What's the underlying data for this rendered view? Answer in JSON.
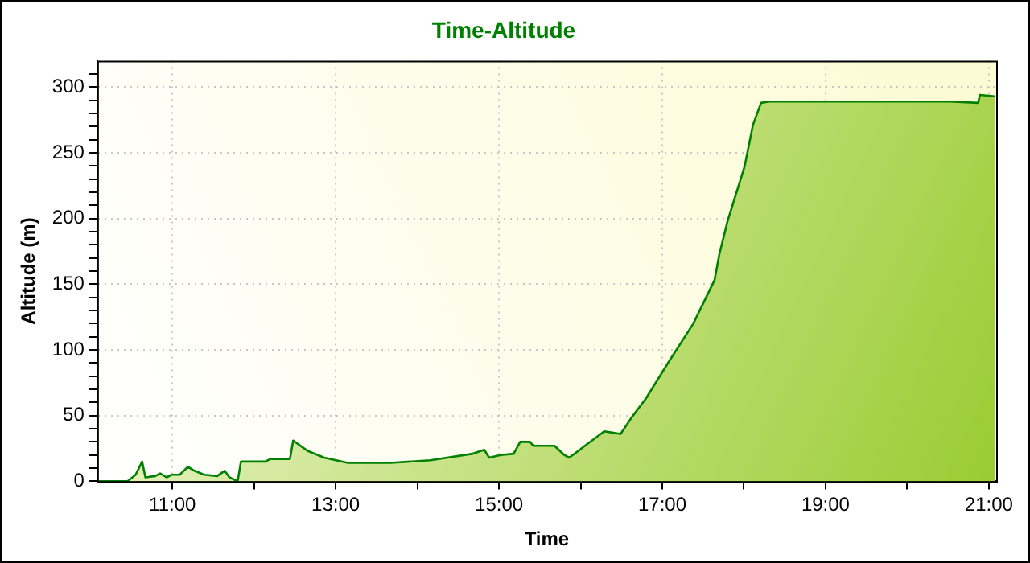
{
  "chart_data": {
    "type": "area",
    "title": "Time-Altitude",
    "xlabel": "Time",
    "ylabel": "Altitude (m)",
    "xlim": [
      10.08,
      21.09
    ],
    "xticks": [
      {
        "value": 11,
        "label": "11:00"
      },
      {
        "value": 12,
        "label": null
      },
      {
        "value": 13,
        "label": "13:00"
      },
      {
        "value": 14,
        "label": null
      },
      {
        "value": 15,
        "label": "15:00"
      },
      {
        "value": 16,
        "label": null
      },
      {
        "value": 17,
        "label": "17:00"
      },
      {
        "value": 18,
        "label": null
      },
      {
        "value": 19,
        "label": "19:00"
      },
      {
        "value": 20,
        "label": null
      },
      {
        "value": 21,
        "label": "21:00"
      }
    ],
    "ylim": [
      0,
      320
    ],
    "yticks": [
      0,
      {
        "value": 10,
        "label": null
      },
      {
        "value": 20,
        "label": null
      },
      {
        "value": 30,
        "label": null
      },
      {
        "value": 40,
        "label": null
      },
      50,
      {
        "value": 60,
        "label": null
      },
      {
        "value": 70,
        "label": null
      },
      {
        "value": 80,
        "label": null
      },
      {
        "value": 90,
        "label": null
      },
      100,
      {
        "value": 110,
        "label": null
      },
      {
        "value": 120,
        "label": null
      },
      {
        "value": 130,
        "label": null
      },
      {
        "value": 140,
        "label": null
      },
      150,
      {
        "value": 160,
        "label": null
      },
      {
        "value": 170,
        "label": null
      },
      {
        "value": 180,
        "label": null
      },
      {
        "value": 190,
        "label": null
      },
      200,
      {
        "value": 210,
        "label": null
      },
      {
        "value": 220,
        "label": null
      },
      {
        "value": 230,
        "label": null
      },
      {
        "value": 240,
        "label": null
      },
      250,
      {
        "value": 260,
        "label": null
      },
      {
        "value": 270,
        "label": null
      },
      {
        "value": 280,
        "label": null
      },
      {
        "value": 290,
        "label": null
      },
      300,
      {
        "value": 310,
        "label": null
      }
    ],
    "grid": true,
    "series": [
      {
        "color": "#008000",
        "x": [
          10.08,
          10.45,
          10.55,
          10.63,
          10.67,
          10.79,
          10.85,
          10.93,
          10.99,
          11.09,
          11.19,
          11.27,
          11.39,
          11.55,
          11.64,
          11.7,
          11.8,
          11.84,
          12.14,
          12.2,
          12.44,
          12.48,
          12.66,
          12.86,
          13.15,
          13.67,
          14.16,
          14.68,
          14.82,
          14.88,
          15.02,
          15.18,
          15.26,
          15.38,
          15.42,
          15.68,
          15.8,
          15.86,
          15.99,
          16.03,
          16.29,
          16.49,
          16.63,
          16.8,
          17.08,
          17.38,
          17.64,
          17.7,
          17.8,
          18.01,
          18.11,
          18.21,
          18.31,
          20.53,
          20.87,
          20.89,
          21.07
        ],
        "values": [
          0,
          0,
          5,
          15,
          3,
          4,
          6,
          3,
          5,
          5,
          11,
          8,
          5,
          4,
          8,
          3,
          0,
          15,
          15,
          17,
          17,
          31,
          23,
          18,
          14,
          14,
          16,
          21,
          24,
          18,
          20,
          21,
          30,
          30,
          27,
          27,
          20,
          18,
          24,
          26,
          38,
          36,
          49,
          63,
          91,
          120,
          153,
          173,
          198,
          240,
          271,
          288,
          289,
          289,
          288,
          294,
          293
        ]
      }
    ]
  }
}
